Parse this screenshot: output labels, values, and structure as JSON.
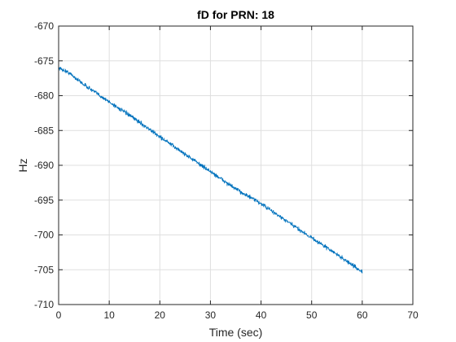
{
  "chart_data": {
    "type": "line",
    "title": "fD for PRN: 18",
    "xlabel": "Time (sec)",
    "ylabel": "Hz",
    "xlim": [
      0,
      70
    ],
    "ylim": [
      -710,
      -670
    ],
    "xticks": [
      0,
      10,
      20,
      30,
      40,
      50,
      60,
      70
    ],
    "yticks": [
      -670,
      -675,
      -680,
      -685,
      -690,
      -695,
      -700,
      -705,
      -710
    ],
    "grid": true,
    "series": [
      {
        "color": "#0072BD",
        "x": [
          0,
          2,
          5,
          10,
          15,
          20,
          25,
          30,
          35,
          40,
          45,
          50,
          55,
          60
        ],
        "y": [
          -676.0,
          -676.7,
          -678.4,
          -680.9,
          -683.3,
          -685.9,
          -688.4,
          -690.9,
          -693.4,
          -695.5,
          -698.0,
          -700.4,
          -702.8,
          -705.3
        ]
      }
    ]
  }
}
